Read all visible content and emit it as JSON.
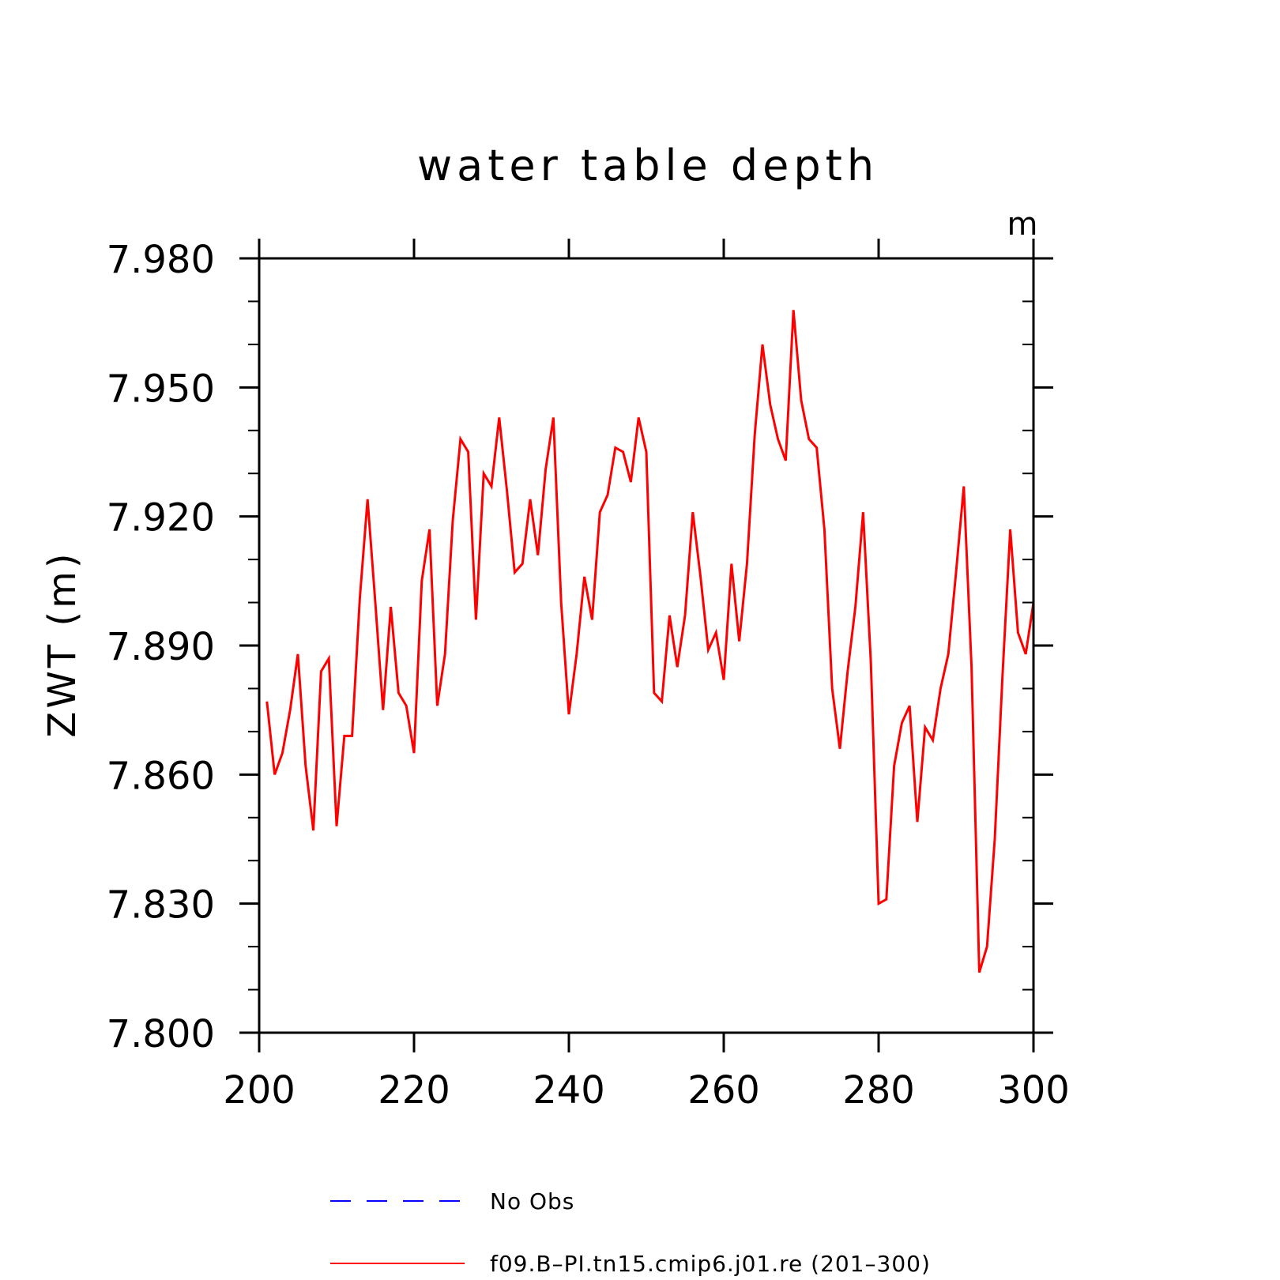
{
  "chart_data": {
    "type": "line",
    "title": "water table depth",
    "ylabel": "ZWT  (m)",
    "units": "m",
    "xlim": [
      200,
      300
    ],
    "ylim": [
      7.8,
      7.98
    ],
    "xticks": [
      "200",
      "220",
      "240",
      "260",
      "280",
      "300"
    ],
    "yticks": [
      "7.800",
      "7.830",
      "7.860",
      "7.890",
      "7.920",
      "7.950",
      "7.980"
    ],
    "legend": [
      {
        "label": "No Obs",
        "color": "#0000ff",
        "style": "dashed"
      },
      {
        "label": "f09.B–PI.tn15.cmip6.j01.re (201–300)",
        "color": "#ff0000",
        "style": "solid"
      }
    ],
    "series": [
      {
        "name": "f09.B–PI.tn15.cmip6.j01.re (201–300)",
        "color": "#ff0000",
        "x": [
          201,
          202,
          203,
          204,
          205,
          206,
          207,
          208,
          209,
          210,
          211,
          212,
          213,
          214,
          215,
          216,
          217,
          218,
          219,
          220,
          221,
          222,
          223,
          224,
          225,
          226,
          227,
          228,
          229,
          230,
          231,
          232,
          233,
          234,
          235,
          236,
          237,
          238,
          239,
          240,
          241,
          242,
          243,
          244,
          245,
          246,
          247,
          248,
          249,
          250,
          251,
          252,
          253,
          254,
          255,
          256,
          257,
          258,
          259,
          260,
          261,
          262,
          263,
          264,
          265,
          266,
          267,
          268,
          269,
          270,
          271,
          272,
          273,
          274,
          275,
          276,
          277,
          278,
          279,
          280,
          281,
          282,
          283,
          284,
          285,
          286,
          287,
          288,
          289,
          290,
          291,
          292,
          293,
          294,
          295,
          296,
          297,
          298,
          299,
          300
        ],
        "values": [
          7.877,
          7.86,
          7.865,
          7.875,
          7.888,
          7.862,
          7.847,
          7.884,
          7.887,
          7.848,
          7.869,
          7.869,
          7.901,
          7.924,
          7.9,
          7.875,
          7.899,
          7.879,
          7.876,
          7.865,
          7.905,
          7.917,
          7.876,
          7.888,
          7.919,
          7.938,
          7.935,
          7.896,
          7.93,
          7.927,
          7.943,
          7.926,
          7.907,
          7.909,
          7.924,
          7.911,
          7.931,
          7.943,
          7.9,
          7.874,
          7.888,
          7.906,
          7.896,
          7.921,
          7.925,
          7.936,
          7.935,
          7.928,
          7.943,
          7.935,
          7.879,
          7.877,
          7.897,
          7.885,
          7.897,
          7.921,
          7.906,
          7.889,
          7.893,
          7.882,
          7.909,
          7.891,
          7.909,
          7.939,
          7.96,
          7.946,
          7.938,
          7.933,
          7.968,
          7.947,
          7.938,
          7.936,
          7.917,
          7.88,
          7.866,
          7.884,
          7.899,
          7.921,
          7.886,
          7.83,
          7.831,
          7.862,
          7.872,
          7.876,
          7.849,
          7.871,
          7.868,
          7.88,
          7.888,
          7.907,
          7.927,
          7.885,
          7.814,
          7.82,
          7.845,
          7.883,
          7.917,
          7.893,
          7.888,
          7.9
        ]
      }
    ]
  }
}
